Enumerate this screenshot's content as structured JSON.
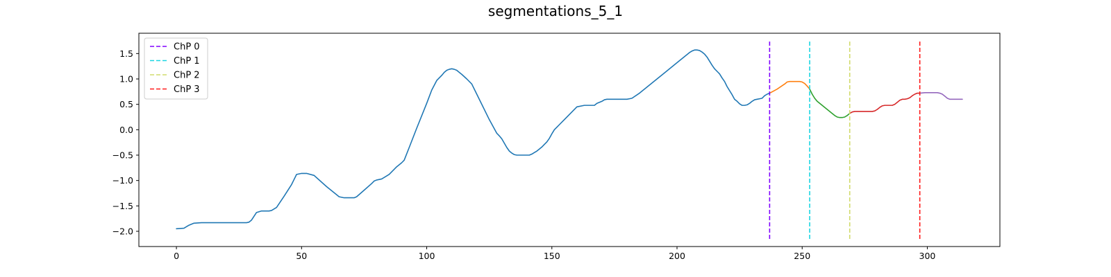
{
  "chart_data": {
    "type": "line",
    "title": "segmentations_5_1",
    "xlabel": "",
    "ylabel": "",
    "xlim": [
      -15,
      329
    ],
    "ylim": [
      -2.3,
      1.9
    ],
    "xticks": [
      0,
      50,
      100,
      150,
      200,
      250,
      300
    ],
    "yticks": [
      -2.0,
      -1.5,
      -1.0,
      -0.5,
      0.0,
      0.5,
      1.0,
      1.5
    ],
    "xtick_labels": [
      "0",
      "50",
      "100",
      "150",
      "200",
      "250",
      "300"
    ],
    "ytick_labels": [
      "−2.0",
      "−1.5",
      "−1.0",
      "−0.5",
      "0.0",
      "0.5",
      "1.0",
      "1.5"
    ],
    "grid": false,
    "legend_position": "upper-left",
    "series": [
      {
        "color": "#1f77b4",
        "x": [
          0,
          3,
          5,
          7,
          10,
          15,
          20,
          25,
          28,
          29,
          30,
          32,
          34,
          36,
          37,
          38,
          40,
          43,
          46,
          47,
          48,
          50,
          52,
          55,
          60,
          63,
          65,
          67,
          69,
          70,
          71,
          72,
          75,
          78,
          79,
          80,
          81,
          82,
          85,
          88,
          90,
          91,
          93,
          96,
          100,
          102,
          104,
          106,
          107,
          108,
          109,
          110,
          111,
          112,
          113,
          114,
          116,
          118,
          120,
          125,
          128,
          129,
          130,
          132,
          133,
          134,
          135,
          136,
          137,
          138,
          139,
          140,
          141,
          142,
          143,
          144,
          145,
          146,
          147,
          148,
          149,
          150,
          151,
          152,
          153,
          155,
          160,
          163,
          165,
          167,
          168,
          170,
          171,
          172,
          173,
          174,
          175,
          176,
          178,
          180,
          181,
          182,
          185,
          190,
          195,
          200,
          205,
          206,
          207,
          208,
          209,
          210,
          211,
          212,
          213,
          214,
          215,
          216,
          217,
          218,
          219,
          220,
          221,
          222,
          223,
          224,
          225,
          226,
          227,
          228,
          229,
          230,
          231,
          232,
          233,
          234,
          235,
          236,
          237
        ],
        "values": [
          -1.95,
          -1.94,
          -1.88,
          -1.84,
          -1.83,
          -1.83,
          -1.83,
          -1.83,
          -1.83,
          -1.82,
          -1.78,
          -1.63,
          -1.6,
          -1.6,
          -1.6,
          -1.59,
          -1.53,
          -1.31,
          -1.08,
          -0.98,
          -0.88,
          -0.86,
          -0.86,
          -0.9,
          -1.12,
          -1.24,
          -1.32,
          -1.34,
          -1.34,
          -1.34,
          -1.34,
          -1.32,
          -1.19,
          -1.06,
          -1.01,
          -0.99,
          -0.98,
          -0.97,
          -0.88,
          -0.73,
          -0.65,
          -0.6,
          -0.35,
          0.03,
          0.52,
          0.78,
          0.97,
          1.07,
          1.13,
          1.17,
          1.19,
          1.2,
          1.19,
          1.17,
          1.13,
          1.09,
          1.0,
          0.9,
          0.7,
          0.2,
          -0.07,
          -0.12,
          -0.18,
          -0.35,
          -0.42,
          -0.46,
          -0.49,
          -0.5,
          -0.5,
          -0.5,
          -0.5,
          -0.5,
          -0.5,
          -0.48,
          -0.45,
          -0.42,
          -0.38,
          -0.34,
          -0.29,
          -0.24,
          -0.17,
          -0.08,
          0.0,
          0.05,
          0.1,
          0.2,
          0.45,
          0.48,
          0.48,
          0.48,
          0.52,
          0.56,
          0.59,
          0.6,
          0.6,
          0.6,
          0.6,
          0.6,
          0.6,
          0.6,
          0.61,
          0.62,
          0.72,
          0.92,
          1.12,
          1.32,
          1.52,
          1.55,
          1.57,
          1.57,
          1.56,
          1.53,
          1.49,
          1.43,
          1.35,
          1.27,
          1.2,
          1.15,
          1.1,
          1.02,
          0.95,
          0.85,
          0.77,
          0.69,
          0.6,
          0.56,
          0.51,
          0.48,
          0.48,
          0.49,
          0.52,
          0.56,
          0.59,
          0.6,
          0.61,
          0.62,
          0.67,
          0.7,
          0.72
        ]
      },
      {
        "color": "#ff7f0e",
        "x": [
          237,
          240,
          243,
          244,
          245,
          246,
          247,
          248,
          249,
          250,
          251,
          252,
          253
        ],
        "values": [
          0.72,
          0.8,
          0.9,
          0.94,
          0.95,
          0.95,
          0.95,
          0.95,
          0.95,
          0.94,
          0.91,
          0.86,
          0.8
        ]
      },
      {
        "color": "#2ca02c",
        "x": [
          253,
          254,
          255,
          256,
          258,
          260,
          262,
          263,
          264,
          265,
          266,
          267,
          268,
          269
        ],
        "values": [
          0.8,
          0.7,
          0.62,
          0.56,
          0.48,
          0.4,
          0.32,
          0.28,
          0.25,
          0.24,
          0.24,
          0.25,
          0.28,
          0.32
        ]
      },
      {
        "color": "#d62728",
        "x": [
          269,
          270,
          271,
          272,
          275,
          278,
          279,
          280,
          281,
          282,
          283,
          284,
          285,
          286,
          287,
          288,
          289,
          290,
          291,
          292,
          293,
          294,
          295,
          296,
          297
        ],
        "values": [
          0.32,
          0.35,
          0.36,
          0.36,
          0.36,
          0.36,
          0.37,
          0.4,
          0.44,
          0.47,
          0.48,
          0.48,
          0.48,
          0.48,
          0.5,
          0.54,
          0.58,
          0.6,
          0.6,
          0.61,
          0.63,
          0.67,
          0.7,
          0.72,
          0.72
        ]
      },
      {
        "color": "#9467bd",
        "x": [
          297,
          299,
          302,
          304,
          305,
          306,
          307,
          308,
          309,
          310,
          312,
          314
        ],
        "values": [
          0.72,
          0.73,
          0.73,
          0.73,
          0.72,
          0.7,
          0.66,
          0.62,
          0.6,
          0.6,
          0.6,
          0.6
        ]
      }
    ],
    "changepoints": [
      {
        "name": "ChP 0",
        "x": 237,
        "color": "#8000ff"
      },
      {
        "name": "ChP 1",
        "x": 253,
        "color": "#1ad5e2"
      },
      {
        "name": "ChP 2",
        "x": 269,
        "color": "#d1db6b"
      },
      {
        "name": "ChP 3",
        "x": 297,
        "color": "#ff1a1a"
      }
    ],
    "changepoint_ylim": [
      -2.15,
      1.75
    ]
  }
}
